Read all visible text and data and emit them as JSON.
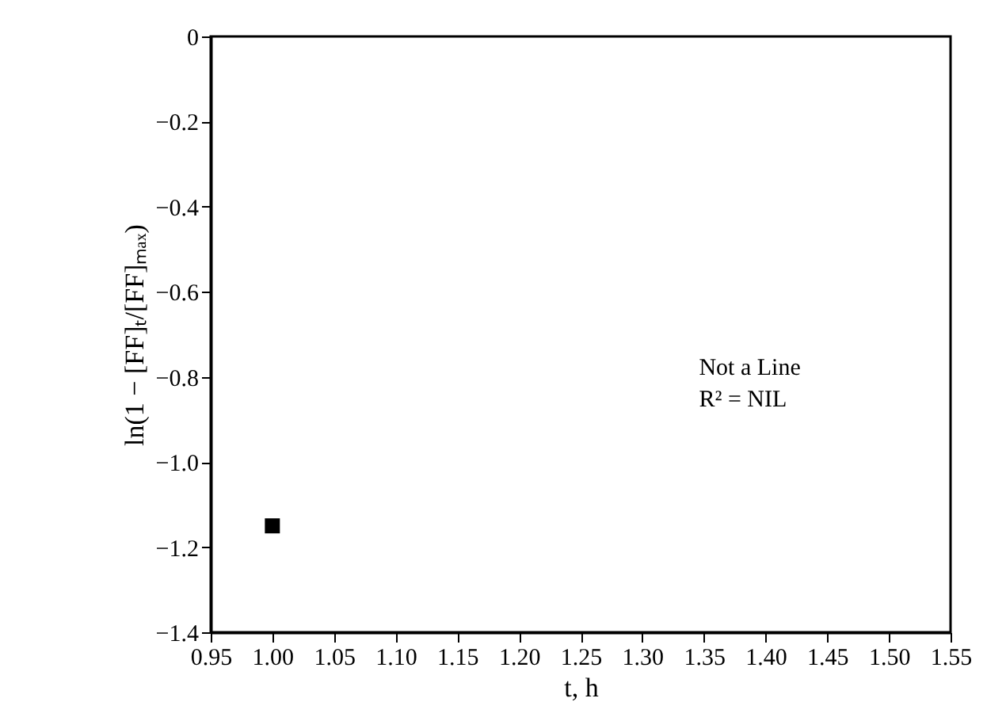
{
  "chart_data": {
    "type": "scatter",
    "xlabel": "t, h",
    "ylabel": "ln(1 − [FF]ₜ/[FF]ₘₐₓ)",
    "x": [
      1.0
    ],
    "series": [
      {
        "color": "#000000",
        "values": [
          -1.15
        ]
      }
    ],
    "marker": "square",
    "grid": false,
    "legend": false,
    "xlim": [
      0.95,
      1.55
    ],
    "xticks": [
      {
        "value": 0.95,
        "label": "0.95"
      },
      {
        "value": 1.0,
        "label": "1.00"
      },
      {
        "value": 1.05,
        "label": "1.05"
      },
      {
        "value": 1.1,
        "label": "1.10"
      },
      {
        "value": 1.15,
        "label": "1.15"
      },
      {
        "value": 1.2,
        "label": "1.20"
      },
      {
        "value": 1.25,
        "label": "1.25"
      },
      {
        "value": 1.3,
        "label": "1.30"
      },
      {
        "value": 1.35,
        "label": "1.35"
      },
      {
        "value": 1.4,
        "label": "1.40"
      },
      {
        "value": 1.45,
        "label": "1.45"
      },
      {
        "value": 1.5,
        "label": "1.50"
      },
      {
        "value": 1.55,
        "label": "1.55"
      }
    ],
    "ylim": [
      -1.4,
      0
    ],
    "yticks": [
      0,
      {
        "value": -0.2,
        "label": "−0.2"
      },
      {
        "value": -0.4,
        "label": "−0.4"
      },
      {
        "value": -0.6,
        "label": "−0.6"
      },
      {
        "value": -0.8,
        "label": "−0.8"
      },
      {
        "value": -1.0,
        "label": "−1.0"
      },
      {
        "value": -1.2,
        "label": "−1.2"
      },
      {
        "value": -1.4,
        "label": "−1.4"
      }
    ],
    "annotations": [
      "Not a Line",
      "R² = NIL"
    ]
  }
}
